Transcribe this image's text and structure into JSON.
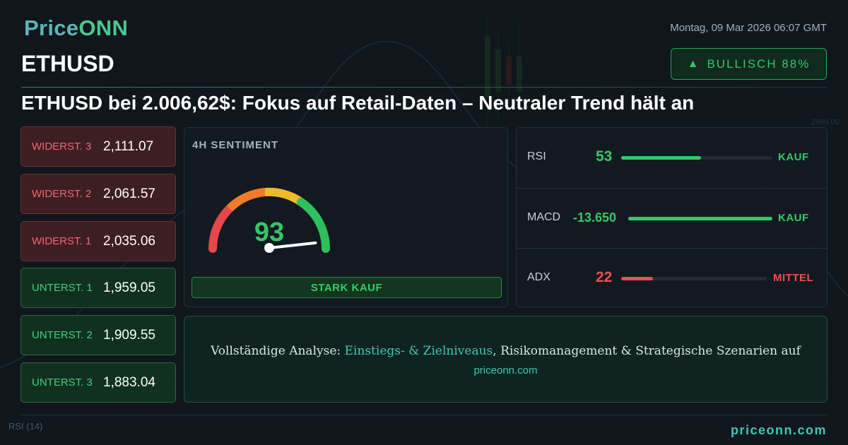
{
  "brand": {
    "name_part1": "Price",
    "name_part2": "ONN"
  },
  "datetime": "Montag, 09 Mar 2026 06:07 GMT",
  "symbol": "ETHUSD",
  "bias": {
    "arrow": "▲",
    "label": "BULLISCH 88%"
  },
  "headline": "ETHUSD bei 2.006,62$: Fokus auf Retail-Daten – Neutraler Trend hält an",
  "levels": [
    {
      "label": "WIDERST. 3",
      "value": "2,111.07",
      "type": "resistance"
    },
    {
      "label": "WIDERST. 2",
      "value": "2,061.57",
      "type": "resistance"
    },
    {
      "label": "WIDERST. 1",
      "value": "2,035.06",
      "type": "resistance"
    },
    {
      "label": "UNTERST. 1",
      "value": "1,959.05",
      "type": "support"
    },
    {
      "label": "UNTERST. 2",
      "value": "1,909.55",
      "type": "support"
    },
    {
      "label": "UNTERST. 3",
      "value": "1,883.04",
      "type": "support"
    }
  ],
  "sentiment": {
    "title": "4H SENTIMENT",
    "score": "93",
    "score_value": 93,
    "signal": "STARK KAUF"
  },
  "indicators": [
    {
      "name": "RSI",
      "value": "53",
      "fill": 0.53,
      "signal": "KAUF",
      "color": "#37c76b"
    },
    {
      "name": "MACD",
      "value": "-13.650",
      "fill": 1.0,
      "signal": "KAUF",
      "color": "#37c76b"
    },
    {
      "name": "ADX",
      "value": "22",
      "fill": 0.22,
      "signal": "MITTEL",
      "color": "#ef4e51"
    }
  ],
  "cta": {
    "prefix": "Vollständige Analyse: ",
    "highlight": "Einstiegs- & Zielniveaus",
    "suffix": ", Risikomanagement & Strategische Szenarien auf",
    "url": "priceonn.com"
  },
  "background": {
    "chart_label_1": "2450.00",
    "chart_label_2": "RSI",
    "chart_label_3": "(14)"
  },
  "footer": {
    "url": "priceonn.com"
  },
  "colors": {
    "bullish": "#37c76b",
    "bearish": "#ef4e51",
    "accent": "#3fc7b5",
    "background": "#0f161c"
  }
}
